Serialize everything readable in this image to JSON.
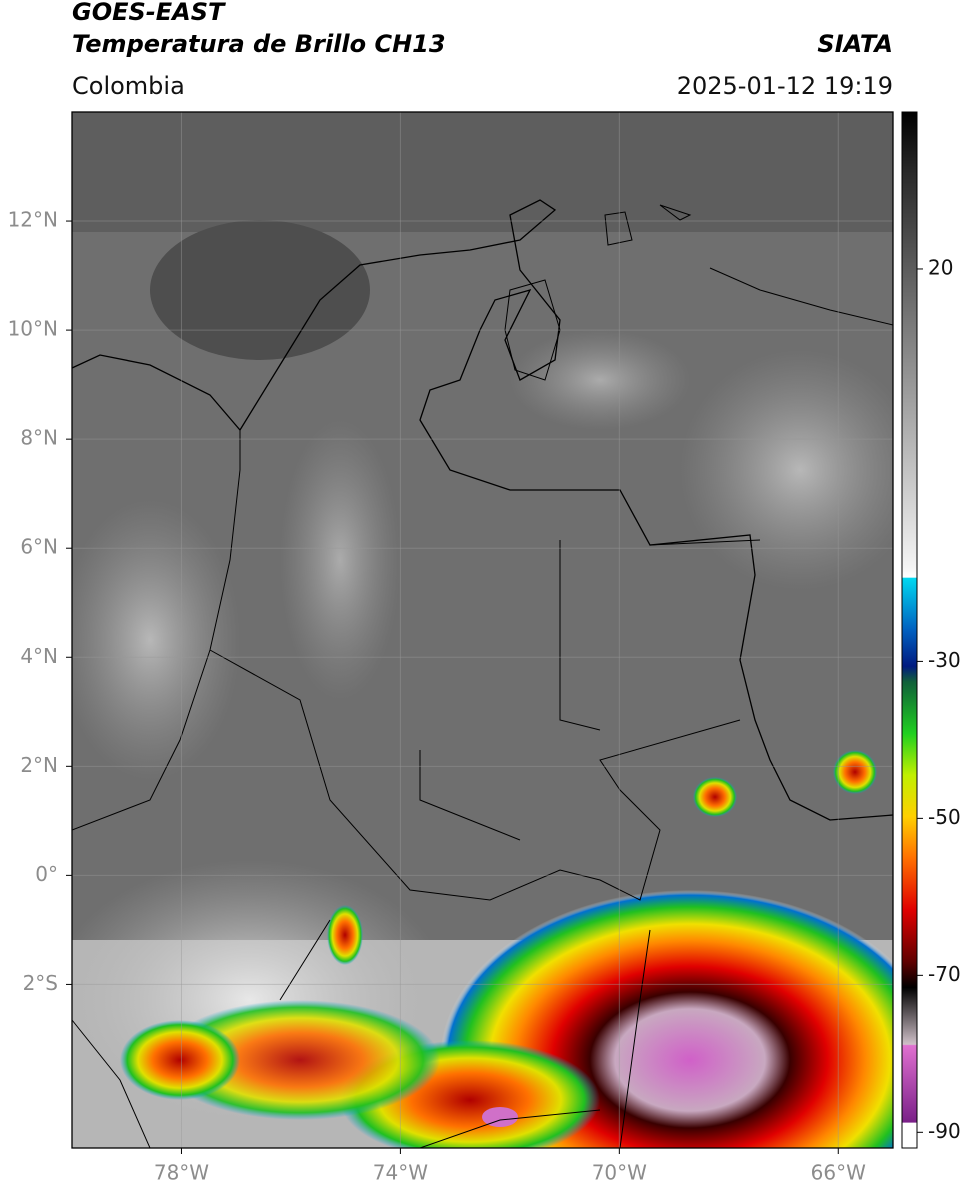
{
  "header": {
    "title": "GOES-EAST",
    "subtitle": "Temperatura de Brillo CH13",
    "source": "SIATA",
    "region": "Colombia",
    "datetime": "2025-01-12 19:19"
  },
  "map": {
    "xlim": [
      -80,
      -65
    ],
    "ylim": [
      -5,
      14
    ],
    "xticks": [
      {
        "value": -78,
        "label": "78°W"
      },
      {
        "value": -74,
        "label": "74°W"
      },
      {
        "value": -70,
        "label": "70°W"
      },
      {
        "value": -66,
        "label": "66°W"
      }
    ],
    "yticks": [
      {
        "value": 12,
        "label": "12°N"
      },
      {
        "value": 10,
        "label": "10°N"
      },
      {
        "value": 8,
        "label": "8°N"
      },
      {
        "value": 6,
        "label": "6°N"
      },
      {
        "value": 4,
        "label": "4°N"
      },
      {
        "value": 2,
        "label": "2°N"
      },
      {
        "value": 0,
        "label": "0°"
      },
      {
        "value": -2,
        "label": "2°S"
      }
    ],
    "grid": true
  },
  "colorbar": {
    "clim": [
      -92,
      40
    ],
    "ticks": [
      20,
      -30,
      -50,
      -70,
      -90
    ]
  }
}
